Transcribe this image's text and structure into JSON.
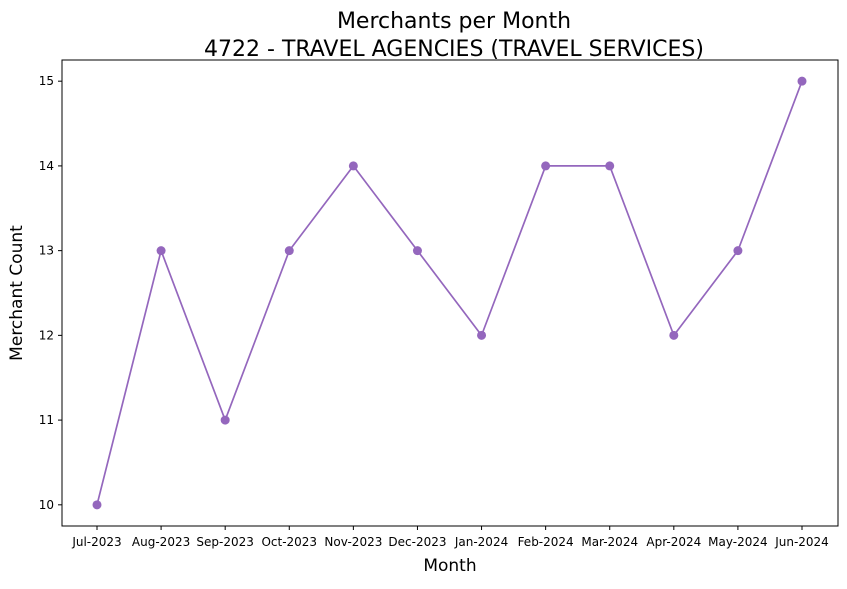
{
  "chart_data": {
    "type": "line",
    "title": "Merchants per Month",
    "subtitle": "4722 - TRAVEL AGENCIES (TRAVEL SERVICES)",
    "xlabel": "Month",
    "ylabel": "Merchant Count",
    "categories": [
      "Jul-2023",
      "Aug-2023",
      "Sep-2023",
      "Oct-2023",
      "Nov-2023",
      "Dec-2023",
      "Jan-2024",
      "Feb-2024",
      "Mar-2024",
      "Apr-2024",
      "May-2024",
      "Jun-2024"
    ],
    "series": [
      {
        "values": [
          10,
          13,
          11,
          13,
          14,
          13,
          12,
          14,
          14,
          12,
          13,
          15
        ],
        "color": "#9467bd",
        "marker": "circle"
      }
    ],
    "ylim": [
      9.75,
      15.25
    ],
    "yticks": [
      "10",
      "11",
      "12",
      "13",
      "14",
      "15"
    ],
    "grid": false,
    "legend": "none"
  }
}
